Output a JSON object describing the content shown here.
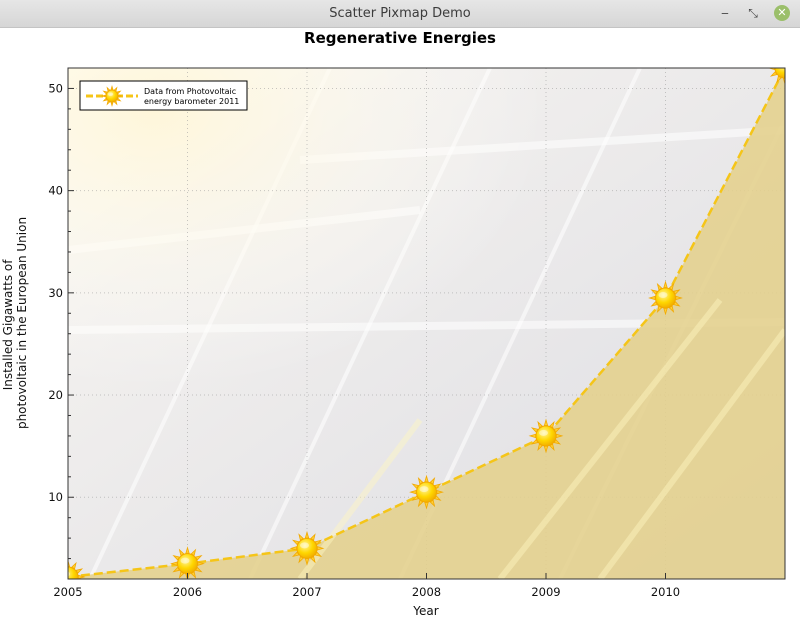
{
  "window": {
    "title": "Scatter Pixmap Demo",
    "minimize_glyph": "‒",
    "restore_glyph": "⤡",
    "close_glyph": "✕"
  },
  "chart_data": {
    "type": "line",
    "title": "Regenerative Energies",
    "xlabel": "Year",
    "ylabel_lines": [
      "Installed Gigawatts of",
      "photovoltaic in the European Union"
    ],
    "xlim": [
      2005,
      2011
    ],
    "ylim": [
      2,
      52
    ],
    "x_ticks": [
      2005,
      2006,
      2007,
      2008,
      2009,
      2010
    ],
    "y_ticks": [
      10,
      20,
      30,
      40,
      50
    ],
    "grid": true,
    "legend_position": "top-left",
    "series": [
      {
        "name_lines": [
          "Data from Photovoltaic",
          "energy barometer 2011"
        ],
        "marker": "sun-icon",
        "fill": "area",
        "x": [
          2005,
          2006,
          2007,
          2008,
          2009,
          2010,
          2011
        ],
        "y": [
          2.2,
          3.5,
          5.0,
          10.5,
          16.0,
          29.5,
          52.0
        ]
      }
    ],
    "colors": {
      "line": "#f5c518",
      "area": "#e4d08c",
      "background": "#e4e4e8",
      "sun_core": "#ffd300",
      "sun_rays": "#f2a900"
    }
  }
}
